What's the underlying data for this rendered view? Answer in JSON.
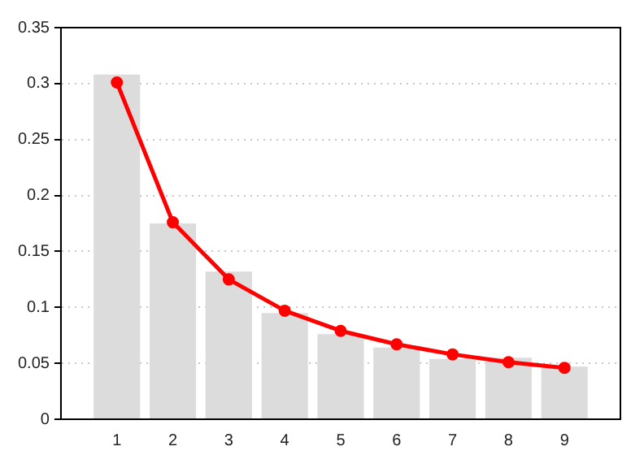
{
  "chart_data": {
    "type": "bar",
    "x": [
      1,
      2,
      3,
      4,
      5,
      6,
      7,
      8,
      9
    ],
    "series": [
      {
        "color": "#dcdcdc",
        "values": [
          0.308,
          0.175,
          0.132,
          0.095,
          0.076,
          0.064,
          0.054,
          0.055,
          0.047
        ]
      },
      {
        "type": "line",
        "color": "#ff0000",
        "values": [
          0.301,
          0.176,
          0.125,
          0.097,
          0.079,
          0.067,
          0.058,
          0.051,
          0.046
        ],
        "marker": "circle",
        "line_style": "solid"
      }
    ],
    "xlim": [
      0,
      10
    ],
    "xticks": [
      1,
      2,
      3,
      4,
      5,
      6,
      7,
      8,
      9
    ],
    "ylim": [
      0,
      0.35
    ],
    "yticks": [
      0,
      0.05,
      0.1,
      0.15,
      0.2,
      0.25,
      0.3,
      0.35
    ],
    "grid": "y",
    "legend": false
  }
}
